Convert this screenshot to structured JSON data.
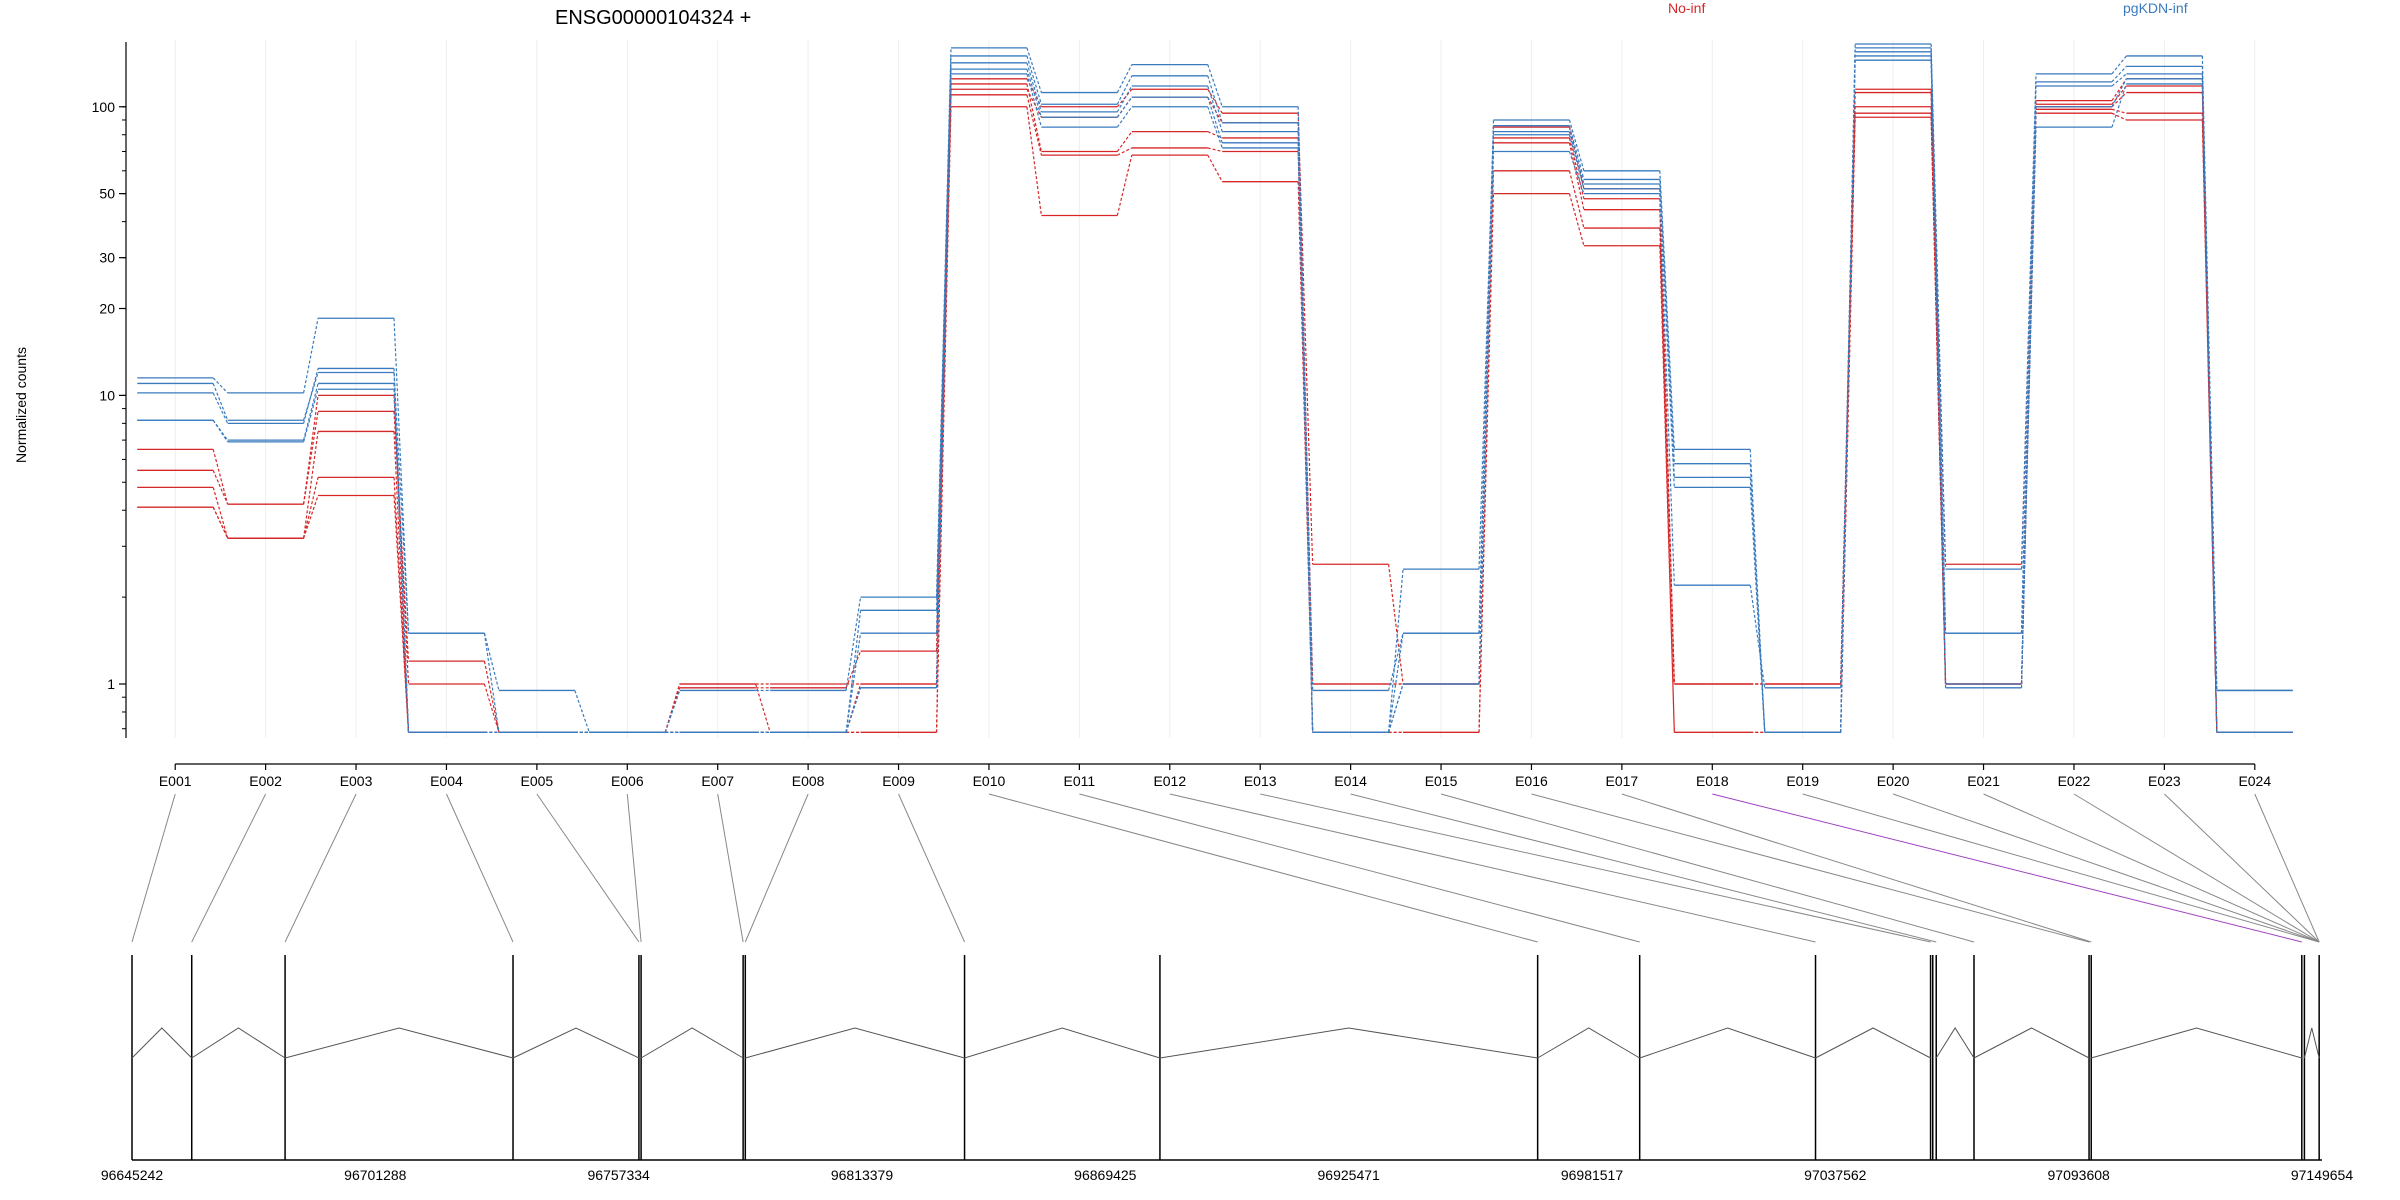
{
  "chart_data": {
    "type": "line",
    "title": "ENSG00000104324 +",
    "ylabel": "Normalized counts",
    "yscale": "log",
    "ylim": [
      0.65,
      165
    ],
    "yticks": [
      1,
      10,
      20,
      30,
      50,
      100
    ],
    "grid": "vertical",
    "legend_placement": "top-right",
    "categories": [
      "E001",
      "E002",
      "E003",
      "E004",
      "E005",
      "E006",
      "E007",
      "E008",
      "E009",
      "E010",
      "E011",
      "E012",
      "E013",
      "E014",
      "E015",
      "E016",
      "E017",
      "E018",
      "E019",
      "E020",
      "E021",
      "E022",
      "E023",
      "E024"
    ],
    "series": [
      {
        "name": "No-inf",
        "color": "#d62728",
        "values": [
          6.5,
          4.2,
          8.8,
          1.2,
          0.68,
          0.68,
          1.0,
          1.0,
          1.0,
          125,
          100,
          115,
          95,
          2.6,
          1.0,
          85,
          52,
          1.0,
          1.0,
          115,
          2.6,
          105,
          125,
          0.68
        ]
      },
      {
        "name": "No-inf",
        "color": "#d62728",
        "values": [
          5.5,
          4.2,
          10.0,
          1.0,
          0.68,
          0.68,
          1.0,
          0.68,
          0.68,
          115,
          92,
          108,
          88,
          1.0,
          1.0,
          78,
          48,
          1.0,
          1.0,
          112,
          1.0,
          102,
          118,
          0.68
        ]
      },
      {
        "name": "No-inf",
        "color": "#d62728",
        "values": [
          4.8,
          3.2,
          7.5,
          0.68,
          0.68,
          0.68,
          0.97,
          0.97,
          1.3,
          120,
          70,
          82,
          78,
          1.0,
          1.0,
          75,
          44,
          1.0,
          1.0,
          100,
          1.0,
          100,
          112,
          0.68
        ]
      },
      {
        "name": "No-inf",
        "color": "#d62728",
        "values": [
          4.1,
          3.2,
          5.2,
          0.68,
          0.68,
          0.68,
          0.68,
          0.68,
          1.0,
          110,
          68,
          72,
          70,
          0.68,
          0.68,
          60,
          38,
          0.68,
          0.68,
          95,
          1.0,
          98,
          95,
          0.68
        ]
      },
      {
        "name": "No-inf",
        "color": "#d62728",
        "values": [
          4.1,
          3.2,
          4.5,
          0.68,
          0.68,
          0.68,
          0.68,
          0.68,
          0.68,
          100,
          42,
          68,
          55,
          0.68,
          0.68,
          50,
          33,
          0.68,
          0.68,
          92,
          1.0,
          95,
          90,
          0.68
        ]
      },
      {
        "name": "pgKDN-inf",
        "color": "#3a7bbf",
        "values": [
          11.5,
          10.2,
          18.5,
          1.5,
          0.95,
          0.68,
          0.95,
          0.95,
          2.0,
          160,
          112,
          140,
          100,
          0.95,
          1.5,
          90,
          60,
          6.5,
          0.68,
          165,
          2.5,
          130,
          150,
          0.95
        ]
      },
      {
        "name": "pgKDN-inf",
        "color": "#3a7bbf",
        "values": [
          11.0,
          8.2,
          12.0,
          1.5,
          0.68,
          0.68,
          0.68,
          0.68,
          1.8,
          150,
          102,
          128,
          88,
          0.68,
          2.5,
          86,
          56,
          5.8,
          0.68,
          160,
          1.5,
          122,
          138,
          0.95
        ]
      },
      {
        "name": "pgKDN-inf",
        "color": "#3a7bbf",
        "values": [
          10.2,
          8.0,
          12.4,
          0.68,
          0.68,
          0.68,
          0.68,
          0.68,
          1.5,
          142,
          96,
          118,
          82,
          0.68,
          1.5,
          82,
          54,
          5.2,
          0.68,
          155,
          1.5,
          118,
          130,
          0.68
        ]
      },
      {
        "name": "pgKDN-inf",
        "color": "#3a7bbf",
        "values": [
          8.2,
          7.0,
          11.0,
          0.68,
          0.68,
          0.68,
          0.68,
          0.68,
          0.97,
          135,
          92,
          108,
          75,
          0.68,
          1.0,
          80,
          52,
          4.8,
          0.68,
          150,
          1.0,
          100,
          125,
          0.68
        ]
      },
      {
        "name": "pgKDN-inf",
        "color": "#3a7bbf",
        "values": [
          8.2,
          6.9,
          10.5,
          0.68,
          0.68,
          0.68,
          0.68,
          0.68,
          0.97,
          130,
          85,
          100,
          72,
          0.68,
          1.0,
          70,
          50,
          2.2,
          0.97,
          145,
          0.97,
          85,
          120,
          0.68
        ]
      }
    ],
    "genomic_axis": {
      "ticks": [
        "96645242",
        "96701288",
        "96757334",
        "96813379",
        "96869425",
        "96925471",
        "96981517",
        "97037562",
        "97093608",
        "97149654"
      ],
      "range": [
        96645242,
        97149654
      ],
      "exon_starts": [
        96645242,
        96659000,
        96680500,
        96733000,
        96762000,
        96762500,
        96786000,
        96786500,
        96837000,
        96882000,
        96969000,
        96992500,
        97033000,
        97059500,
        97060000,
        97060800,
        97069500,
        97096000,
        97096500,
        97145000,
        97145600,
        97149000
      ],
      "exon_links": [
        0,
        1,
        2,
        3,
        4,
        5,
        6,
        7,
        8,
        10,
        11,
        12,
        13,
        15,
        16,
        17,
        18,
        19,
        21,
        23,
        24,
        25,
        26,
        27
      ],
      "highlight_exon": "E018",
      "highlight_color": "#a040c0"
    }
  }
}
